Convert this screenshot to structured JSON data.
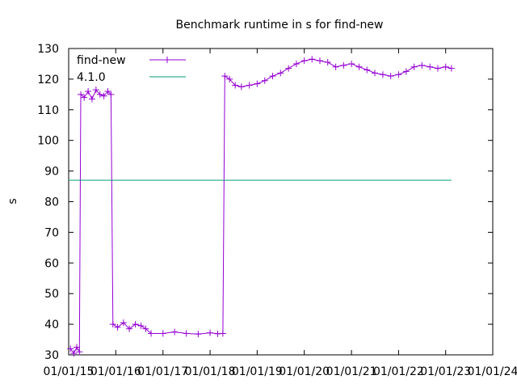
{
  "chart_data": {
    "type": "line",
    "title": "Benchmark runtime in s for find-new",
    "xlabel": "",
    "ylabel": "s",
    "xlim": [
      "2015-01-01",
      "2024-01-01"
    ],
    "ylim": [
      30,
      130
    ],
    "xticks": [
      "01/01/15",
      "01/01/16",
      "01/01/17",
      "01/01/18",
      "01/01/19",
      "01/01/20",
      "01/01/21",
      "01/01/22",
      "01/01/23",
      "01/01/24"
    ],
    "yticks": [
      30,
      40,
      50,
      60,
      70,
      80,
      90,
      100,
      110,
      120,
      130
    ],
    "grid": false,
    "legend_position": "top-left",
    "series": [
      {
        "name": "find-new",
        "style": "line+crosses",
        "color": "#9400d3",
        "points": [
          [
            "2015-01-15",
            32
          ],
          [
            "2015-02-10",
            30.5
          ],
          [
            "2015-03-05",
            32.5
          ],
          [
            "2015-03-25",
            31
          ],
          [
            "2015-04-05",
            115
          ],
          [
            "2015-05-01",
            114
          ],
          [
            "2015-06-01",
            116
          ],
          [
            "2015-07-01",
            113.5
          ],
          [
            "2015-08-01",
            116.5
          ],
          [
            "2015-09-01",
            115
          ],
          [
            "2015-10-01",
            114.5
          ],
          [
            "2015-11-01",
            116
          ],
          [
            "2015-11-25",
            115
          ],
          [
            "2015-12-10",
            40
          ],
          [
            "2016-01-15",
            39
          ],
          [
            "2016-03-01",
            40.5
          ],
          [
            "2016-04-15",
            38.5
          ],
          [
            "2016-06-01",
            40
          ],
          [
            "2016-07-15",
            39.5
          ],
          [
            "2016-08-20",
            38.5
          ],
          [
            "2016-10-01",
            37
          ],
          [
            "2017-01-01",
            37
          ],
          [
            "2017-04-01",
            37.5
          ],
          [
            "2017-07-01",
            37
          ],
          [
            "2017-10-01",
            36.8
          ],
          [
            "2018-01-01",
            37.2
          ],
          [
            "2018-03-01",
            36.9
          ],
          [
            "2018-04-10",
            37
          ],
          [
            "2018-04-25",
            121
          ],
          [
            "2018-06-01",
            120
          ],
          [
            "2018-07-15",
            118
          ],
          [
            "2018-09-01",
            117.5
          ],
          [
            "2018-11-01",
            118
          ],
          [
            "2019-01-01",
            118.5
          ],
          [
            "2019-03-01",
            119.5
          ],
          [
            "2019-05-01",
            121
          ],
          [
            "2019-07-01",
            122
          ],
          [
            "2019-09-01",
            123.5
          ],
          [
            "2019-11-01",
            125
          ],
          [
            "2020-01-01",
            126
          ],
          [
            "2020-03-01",
            126.5
          ],
          [
            "2020-05-01",
            126
          ],
          [
            "2020-07-01",
            125.5
          ],
          [
            "2020-09-01",
            124
          ],
          [
            "2020-11-01",
            124.5
          ],
          [
            "2021-01-01",
            125
          ],
          [
            "2021-03-01",
            124
          ],
          [
            "2021-05-01",
            123
          ],
          [
            "2021-07-01",
            122
          ],
          [
            "2021-09-01",
            121.5
          ],
          [
            "2021-11-01",
            121
          ],
          [
            "2022-01-01",
            121.5
          ],
          [
            "2022-03-01",
            122.5
          ],
          [
            "2022-05-01",
            124
          ],
          [
            "2022-07-01",
            124.5
          ],
          [
            "2022-09-01",
            124
          ],
          [
            "2022-11-01",
            123.5
          ],
          [
            "2023-01-01",
            124
          ],
          [
            "2023-02-15",
            123.5
          ]
        ]
      },
      {
        "name": "4.1.0",
        "style": "line",
        "color": "#009e73",
        "points": [
          [
            "2015-01-01",
            87
          ],
          [
            "2023-02-15",
            87
          ]
        ]
      }
    ]
  }
}
